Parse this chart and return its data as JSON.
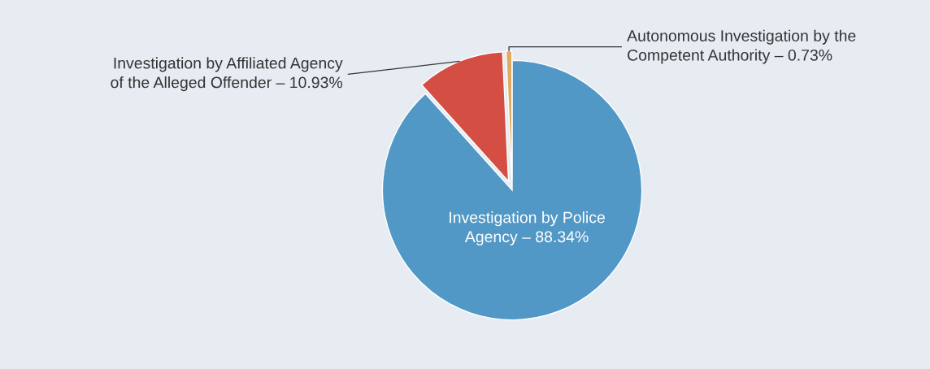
{
  "chart_data": {
    "type": "pie",
    "categories": [
      "Investigation by Police\nAgency – 88.34%",
      "Investigation by Affiliated Agency\nof the Alleged Offender – 10.93%",
      "Autonomous Investigation by the\nCompetent Authority – 0.73%"
    ],
    "values": [
      88.34,
      10.93,
      0.73
    ],
    "colors": [
      "#5298c6",
      "#d44e44",
      "#e0aa62"
    ],
    "legend": false
  }
}
